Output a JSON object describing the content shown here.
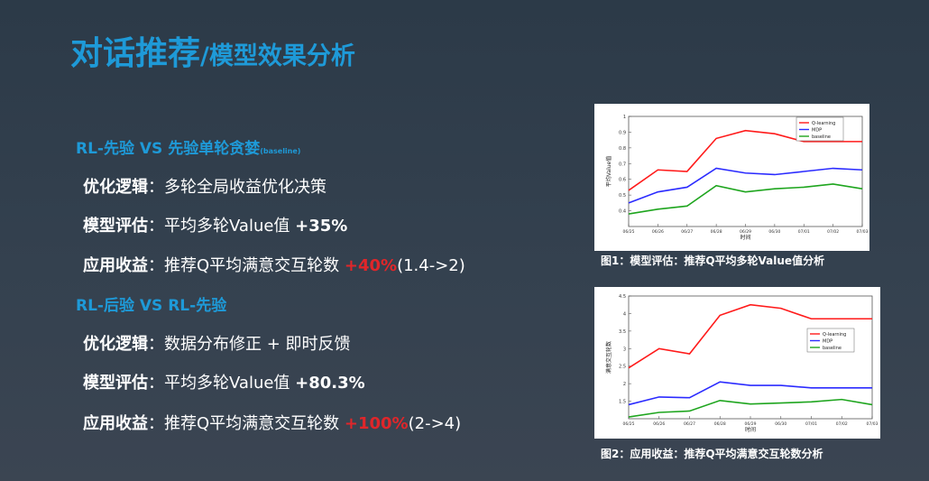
{
  "title": {
    "main": "对话推荐",
    "sub": "/模型效果分析"
  },
  "section1": {
    "heading": "RL-先验  VS  先验单轮贪婪",
    "heading_note": "(baseline)",
    "rows": [
      {
        "label": "优化逻辑",
        "sep": "：",
        "text": "多轮全局收益优化决策",
        "highlight": "",
        "tail": ""
      },
      {
        "label": "模型评估",
        "sep": "：",
        "text": "平均多轮Value值 ",
        "highlight": "+35%",
        "tail": ""
      },
      {
        "label": "应用收益",
        "sep": "：",
        "text": "推荐Q平均满意交互轮数 ",
        "highlight": "+40%",
        "tail": "(1.4->2)"
      }
    ]
  },
  "section2": {
    "heading": "RL-后验  VS  RL-先验",
    "rows": [
      {
        "label": "优化逻辑",
        "sep": "：",
        "text": "数据分布修正 + 即时反馈",
        "highlight": "",
        "tail": ""
      },
      {
        "label": "模型评估",
        "sep": "：",
        "text": "平均多轮Value值 ",
        "highlight": "+80.3%",
        "tail": ""
      },
      {
        "label": "应用收益",
        "sep": "：",
        "text": "推荐Q平均满意交互轮数 ",
        "highlight": "+100%",
        "tail": "(2->4)"
      }
    ]
  },
  "figure1": {
    "caption": "图1：模型评估：推荐Q平均多轮Value值分析"
  },
  "figure2": {
    "caption": "图2：应用收益：推荐Q平均满意交互轮数分析"
  },
  "chart_data": [
    {
      "type": "line",
      "x": [
        "06/25",
        "06/26",
        "06/27",
        "06/28",
        "06/29",
        "06/30",
        "07/01",
        "07/02",
        "07/03"
      ],
      "ylabel": "平均Value值",
      "xlabel": "时间",
      "ylim": [
        0.3,
        1.0
      ],
      "yticks": [
        0.4,
        0.5,
        0.6,
        0.7,
        0.8,
        0.9,
        1.0
      ],
      "legend_position": "top-left",
      "series": [
        {
          "name": "Q-learning",
          "color": "#ff1a1a",
          "values": [
            0.53,
            0.66,
            0.65,
            0.86,
            0.91,
            0.89,
            0.84,
            0.84,
            0.84
          ]
        },
        {
          "name": "MDP",
          "color": "#2b2bff",
          "values": [
            0.45,
            0.52,
            0.55,
            0.67,
            0.64,
            0.63,
            0.65,
            0.67,
            0.66
          ]
        },
        {
          "name": "baseline",
          "color": "#1ea51e",
          "values": [
            0.38,
            0.41,
            0.43,
            0.56,
            0.52,
            0.54,
            0.55,
            0.57,
            0.54
          ]
        }
      ]
    },
    {
      "type": "line",
      "x": [
        "06/25",
        "06/26",
        "06/27",
        "06/28",
        "06/29",
        "06/30",
        "07/01",
        "07/02",
        "07/03"
      ],
      "ylabel": "满意交互轮数",
      "xlabel": "时间",
      "ylim": [
        1.0,
        4.5
      ],
      "yticks": [
        1.5,
        2.0,
        2.5,
        3.0,
        3.5,
        4.0,
        4.5
      ],
      "legend_position": "right",
      "series": [
        {
          "name": "Q-learning",
          "color": "#ff1a1a",
          "values": [
            2.45,
            3.0,
            2.85,
            3.95,
            4.25,
            4.15,
            3.85,
            3.85,
            3.85
          ]
        },
        {
          "name": "MDP",
          "color": "#2b2bff",
          "values": [
            1.4,
            1.62,
            1.6,
            2.05,
            1.95,
            1.95,
            1.88,
            1.88,
            1.88
          ]
        },
        {
          "name": "baseline",
          "color": "#1ea51e",
          "values": [
            1.05,
            1.18,
            1.22,
            1.52,
            1.42,
            1.45,
            1.48,
            1.55,
            1.4
          ]
        }
      ]
    }
  ]
}
